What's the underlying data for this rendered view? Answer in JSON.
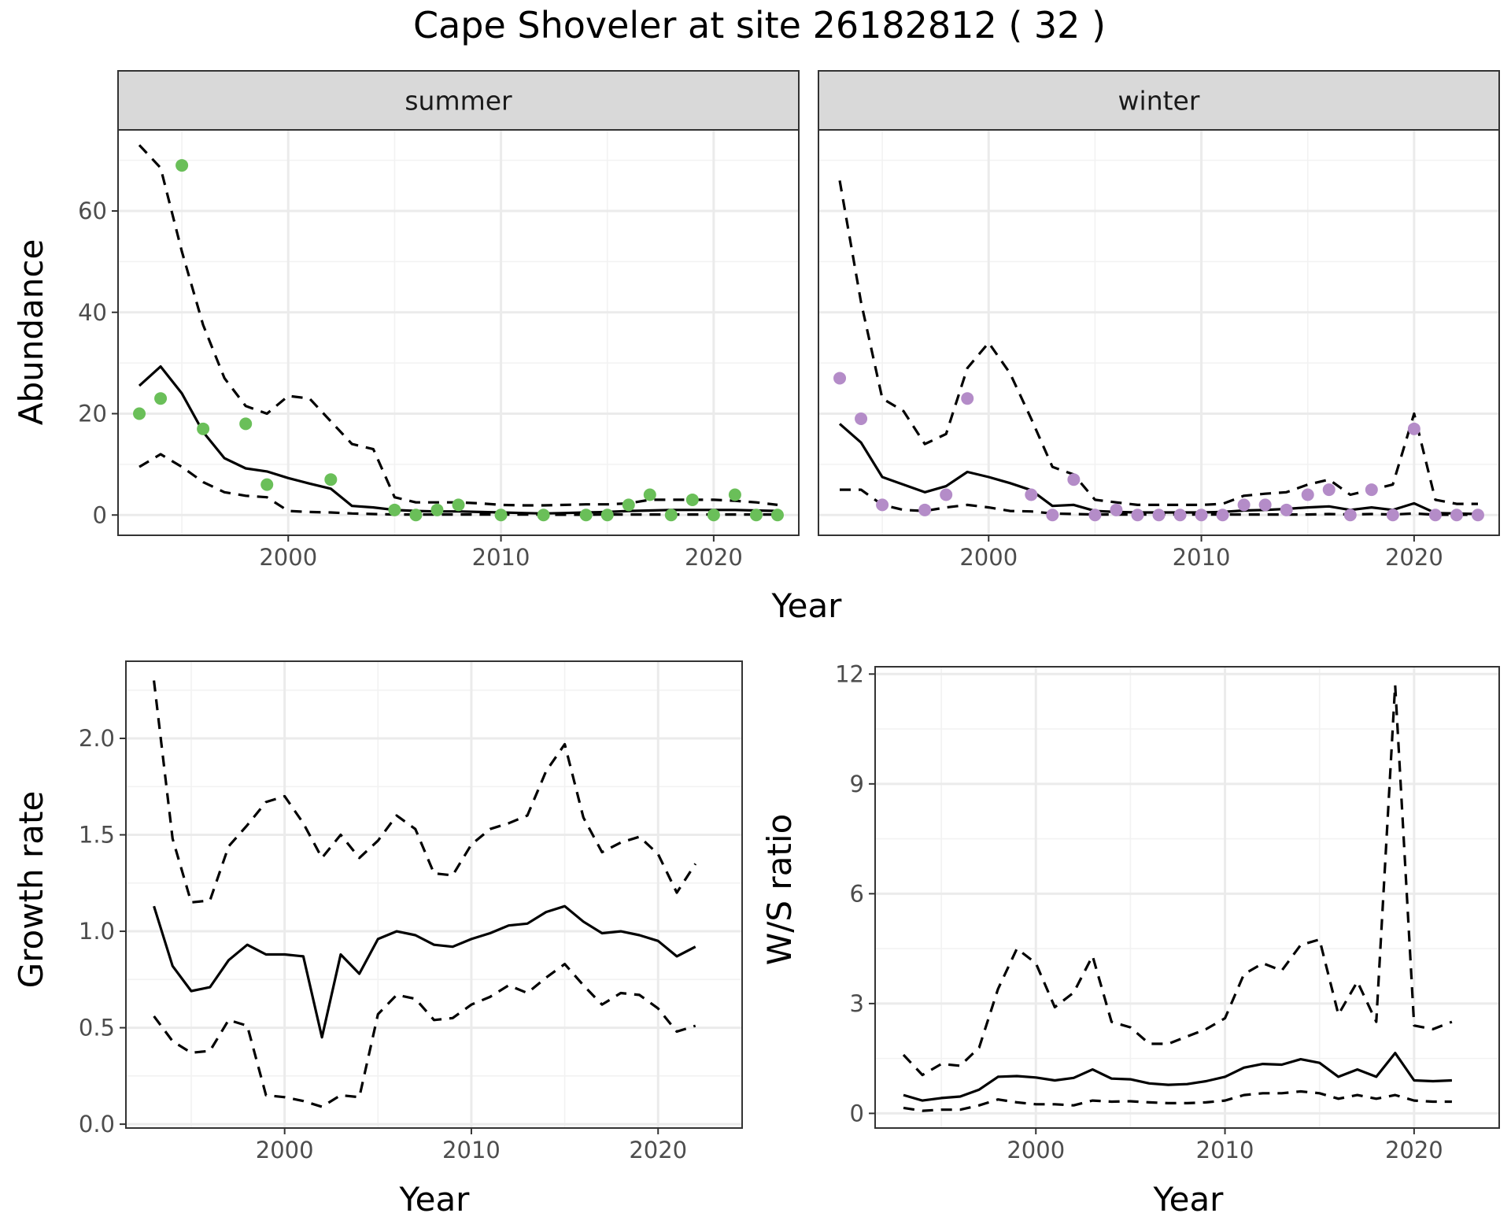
{
  "title": "Cape Shoveler at site 26182812 ( 32 )",
  "colors": {
    "summer_points": "#6abf59",
    "winter_points": "#b48cc8"
  },
  "chart_data": [
    {
      "type": "line",
      "panel": "summer",
      "xlabel": "Year",
      "ylabel": "Abundance",
      "xlim": [
        1992,
        2024
      ],
      "ylim": [
        -4,
        76
      ],
      "xticks": [
        2000,
        2010,
        2020
      ],
      "yticks": [
        0,
        20,
        40,
        60
      ],
      "grid": true,
      "series": [
        {
          "style": "solid",
          "x": [
            1993,
            1994,
            1995,
            1996,
            1997,
            1998,
            1999,
            2000,
            2001,
            2002,
            2003,
            2004,
            2005,
            2006,
            2007,
            2008,
            2009,
            2010,
            2011,
            2012,
            2013,
            2014,
            2015,
            2016,
            2017,
            2018,
            2019,
            2020,
            2021,
            2022,
            2023
          ],
          "values": [
            25.5,
            29.3,
            24,
            16.4,
            11.2,
            9.2,
            8.6,
            7.3,
            6.2,
            5.2,
            1.8,
            1.5,
            1,
            0.8,
            0.7,
            0.7,
            0.6,
            0.5,
            0.4,
            0.3,
            0.4,
            0.5,
            0.6,
            0.8,
            0.9,
            1,
            1,
            1,
            1,
            0.9,
            0.8
          ]
        },
        {
          "style": "dashed",
          "x": [
            1993,
            1994,
            1995,
            1996,
            1997,
            1998,
            1999,
            2000,
            2001,
            2002,
            2003,
            2004,
            2005,
            2006,
            2007,
            2008,
            2009,
            2010,
            2011,
            2012,
            2013,
            2014,
            2015,
            2016,
            2017,
            2018,
            2019,
            2020,
            2021,
            2022,
            2023
          ],
          "values": [
            73,
            68.5,
            52,
            37.5,
            27,
            21.5,
            20,
            23.5,
            23,
            18.5,
            14,
            13,
            3.5,
            2.5,
            2.5,
            2.5,
            2.3,
            2,
            1.9,
            1.9,
            2,
            2.1,
            2.1,
            2.3,
            3,
            3,
            3,
            3,
            2.8,
            2.5,
            2
          ]
        },
        {
          "style": "dashed",
          "x": [
            1993,
            1994,
            1995,
            1996,
            1997,
            1998,
            1999,
            2000,
            2001,
            2002,
            2003,
            2004,
            2005,
            2006,
            2007,
            2008,
            2009,
            2010,
            2011,
            2012,
            2013,
            2014,
            2015,
            2016,
            2017,
            2018,
            2019,
            2020,
            2021,
            2022,
            2023
          ],
          "values": [
            9.5,
            12,
            9.5,
            6.5,
            4.5,
            3.8,
            3.5,
            0.8,
            0.6,
            0.5,
            0.3,
            0.2,
            0.1,
            0.1,
            0.1,
            0.1,
            0.1,
            0.1,
            0.1,
            0.05,
            0.05,
            0.05,
            0.1,
            0.1,
            0.1,
            0.1,
            0.1,
            0.1,
            0.1,
            0.1,
            0.1
          ]
        },
        {
          "style": "points",
          "x": [
            1993,
            1994,
            1995,
            1996,
            1998,
            1999,
            2002,
            2005,
            2006,
            2007,
            2008,
            2010,
            2012,
            2014,
            2015,
            2016,
            2017,
            2018,
            2019,
            2020,
            2021,
            2022,
            2023
          ],
          "values": [
            20,
            23,
            69,
            17,
            18,
            6,
            7,
            1,
            0,
            1,
            2,
            0,
            0,
            0,
            0,
            2,
            4,
            0,
            3,
            0,
            4,
            0,
            0
          ]
        }
      ]
    },
    {
      "type": "line",
      "panel": "winter",
      "xlabel": "Year",
      "ylabel": "Abundance",
      "xlim": [
        1992,
        2024
      ],
      "ylim": [
        -4,
        76
      ],
      "xticks": [
        2000,
        2010,
        2020
      ],
      "yticks": [
        0,
        20,
        40,
        60
      ],
      "grid": true,
      "series": [
        {
          "style": "solid",
          "x": [
            1993,
            1994,
            1995,
            1996,
            1997,
            1998,
            1999,
            2000,
            2001,
            2002,
            2003,
            2004,
            2005,
            2006,
            2007,
            2008,
            2009,
            2010,
            2011,
            2012,
            2013,
            2014,
            2015,
            2016,
            2017,
            2018,
            2019,
            2020,
            2021,
            2022,
            2023
          ],
          "values": [
            18,
            14.3,
            7.5,
            6,
            4.5,
            5.7,
            8.5,
            7.5,
            6.3,
            4.9,
            1.8,
            2,
            0.8,
            0.6,
            0.5,
            0.5,
            0.5,
            0.5,
            0.6,
            0.9,
            1,
            1.2,
            1.5,
            1.7,
            1,
            1.5,
            1,
            2.3,
            0.4,
            0.3,
            0.2
          ]
        },
        {
          "style": "dashed",
          "x": [
            1993,
            1994,
            1995,
            1996,
            1997,
            1998,
            1999,
            2000,
            2001,
            2002,
            2003,
            2004,
            2005,
            2006,
            2007,
            2008,
            2009,
            2010,
            2011,
            2012,
            2013,
            2014,
            2015,
            2016,
            2017,
            2018,
            2019,
            2020,
            2021,
            2022,
            2023
          ],
          "values": [
            66,
            42,
            23,
            20.5,
            14,
            16,
            29,
            34,
            28,
            19,
            9.5,
            8,
            3,
            2.5,
            2,
            2,
            2,
            2,
            2.2,
            3.8,
            4.2,
            4.5,
            6,
            7,
            4,
            5,
            6,
            20,
            3,
            2.2,
            2.2
          ]
        },
        {
          "style": "dashed",
          "x": [
            1993,
            1994,
            1995,
            1996,
            1997,
            1998,
            1999,
            2000,
            2001,
            2002,
            2003,
            2004,
            2005,
            2006,
            2007,
            2008,
            2009,
            2010,
            2011,
            2012,
            2013,
            2014,
            2015,
            2016,
            2017,
            2018,
            2019,
            2020,
            2021,
            2022,
            2023
          ],
          "values": [
            5,
            5,
            2,
            1,
            0.8,
            1.5,
            2,
            1.5,
            0.8,
            0.7,
            0.3,
            0.2,
            0.1,
            0.1,
            0.1,
            0.1,
            0.1,
            0.1,
            0.1,
            0.1,
            0.1,
            0.1,
            0.1,
            0.2,
            0.1,
            0.2,
            0.1,
            0.3,
            0.05,
            0.05,
            0.05
          ]
        },
        {
          "style": "points",
          "x": [
            1993,
            1994,
            1995,
            1997,
            1998,
            1999,
            2002,
            2003,
            2004,
            2005,
            2006,
            2007,
            2008,
            2009,
            2010,
            2011,
            2012,
            2013,
            2014,
            2015,
            2016,
            2017,
            2018,
            2019,
            2020,
            2021,
            2022,
            2023
          ],
          "values": [
            27,
            19,
            2,
            1,
            4,
            23,
            4,
            0,
            7,
            0,
            1,
            0,
            0,
            0,
            0,
            0,
            2,
            2,
            1,
            4,
            5,
            0,
            5,
            0,
            17,
            0,
            0,
            0
          ]
        }
      ]
    },
    {
      "type": "line",
      "panel": "growth",
      "xlabel": "Year",
      "ylabel": "Growth rate",
      "xlim": [
        1991.5,
        2024.5
      ],
      "ylim": [
        -0.02,
        2.4
      ],
      "xticks": [
        2000,
        2010,
        2020
      ],
      "yticks": [
        0.0,
        0.5,
        1.0,
        1.5,
        2.0
      ],
      "ytick_labels": [
        "0.0",
        "0.5",
        "1.0",
        "1.5",
        "2.0"
      ],
      "grid": true,
      "series": [
        {
          "style": "solid",
          "x": [
            1993,
            1994,
            1995,
            1996,
            1997,
            1998,
            1999,
            2000,
            2001,
            2002,
            2003,
            2004,
            2005,
            2006,
            2007,
            2008,
            2009,
            2010,
            2011,
            2012,
            2013,
            2014,
            2015,
            2016,
            2017,
            2018,
            2019,
            2020,
            2021,
            2022
          ],
          "values": [
            1.13,
            0.82,
            0.69,
            0.71,
            0.85,
            0.93,
            0.88,
            0.88,
            0.87,
            0.45,
            0.88,
            0.78,
            0.96,
            1,
            0.98,
            0.93,
            0.92,
            0.96,
            0.99,
            1.03,
            1.04,
            1.1,
            1.13,
            1.05,
            0.99,
            1,
            0.98,
            0.95,
            0.87,
            0.92
          ]
        },
        {
          "style": "dashed",
          "x": [
            1993,
            1994,
            1995,
            1996,
            1997,
            1998,
            1999,
            2000,
            2001,
            2002,
            2003,
            2004,
            2005,
            2006,
            2007,
            2008,
            2009,
            2010,
            2011,
            2012,
            2013,
            2014,
            2015,
            2016,
            2017,
            2018,
            2019,
            2020,
            2021,
            2022
          ],
          "values": [
            2.3,
            1.48,
            1.15,
            1.16,
            1.44,
            1.55,
            1.67,
            1.7,
            1.56,
            1.38,
            1.5,
            1.38,
            1.47,
            1.6,
            1.53,
            1.3,
            1.29,
            1.45,
            1.53,
            1.56,
            1.6,
            1.83,
            1.97,
            1.59,
            1.41,
            1.46,
            1.49,
            1.4,
            1.2,
            1.35
          ]
        },
        {
          "style": "dashed",
          "x": [
            1993,
            1994,
            1995,
            1996,
            1997,
            1998,
            1999,
            2000,
            2001,
            2002,
            2003,
            2004,
            2005,
            2006,
            2007,
            2008,
            2009,
            2010,
            2011,
            2012,
            2013,
            2014,
            2015,
            2016,
            2017,
            2018,
            2019,
            2020,
            2021,
            2022
          ],
          "values": [
            0.56,
            0.43,
            0.37,
            0.38,
            0.54,
            0.51,
            0.15,
            0.14,
            0.12,
            0.09,
            0.15,
            0.14,
            0.57,
            0.67,
            0.65,
            0.54,
            0.55,
            0.62,
            0.66,
            0.72,
            0.68,
            0.76,
            0.83,
            0.72,
            0.62,
            0.68,
            0.67,
            0.6,
            0.48,
            0.51
          ]
        }
      ]
    },
    {
      "type": "line",
      "panel": "ws-ratio",
      "xlabel": "Year",
      "ylabel": "W/S ratio",
      "xlim": [
        1991.5,
        2024.5
      ],
      "ylim": [
        -0.4,
        12.2
      ],
      "xticks": [
        2000,
        2010,
        2020
      ],
      "yticks": [
        0,
        3,
        6,
        9,
        12
      ],
      "ytick_labels": [
        "0",
        "3",
        "6",
        "9",
        "12"
      ],
      "grid": true,
      "series": [
        {
          "style": "solid",
          "x": [
            1993,
            1994,
            1995,
            1996,
            1997,
            1998,
            1999,
            2000,
            2001,
            2002,
            2003,
            2004,
            2005,
            2006,
            2007,
            2008,
            2009,
            2010,
            2011,
            2012,
            2013,
            2014,
            2015,
            2016,
            2017,
            2018,
            2019,
            2020,
            2021,
            2022
          ],
          "values": [
            0.5,
            0.35,
            0.42,
            0.46,
            0.65,
            1,
            1.02,
            0.98,
            0.9,
            0.97,
            1.2,
            0.95,
            0.93,
            0.82,
            0.78,
            0.8,
            0.88,
            1,
            1.25,
            1.35,
            1.33,
            1.48,
            1.38,
            1,
            1.2,
            1,
            1.65,
            0.9,
            0.88,
            0.9
          ]
        },
        {
          "style": "dashed",
          "x": [
            1993,
            1994,
            1995,
            1996,
            1997,
            1998,
            1999,
            2000,
            2001,
            2002,
            2003,
            2004,
            2005,
            2006,
            2007,
            2008,
            2009,
            2010,
            2011,
            2012,
            2013,
            2014,
            2015,
            2016,
            2017,
            2018,
            2019,
            2020,
            2021,
            2022
          ],
          "values": [
            1.6,
            1.05,
            1.35,
            1.3,
            1.8,
            3.4,
            4.5,
            4.1,
            2.9,
            3.3,
            4.3,
            2.5,
            2.35,
            1.9,
            1.9,
            2.1,
            2.3,
            2.6,
            3.8,
            4.1,
            3.9,
            4.6,
            4.75,
            2.7,
            3.6,
            2.5,
            11.7,
            2.4,
            2.3,
            2.5
          ]
        },
        {
          "style": "dashed",
          "x": [
            1993,
            1994,
            1995,
            1996,
            1997,
            1998,
            1999,
            2000,
            2001,
            2002,
            2003,
            2004,
            2005,
            2006,
            2007,
            2008,
            2009,
            2010,
            2011,
            2012,
            2013,
            2014,
            2015,
            2016,
            2017,
            2018,
            2019,
            2020,
            2021,
            2022
          ],
          "values": [
            0.15,
            0.07,
            0.1,
            0.1,
            0.22,
            0.38,
            0.3,
            0.25,
            0.25,
            0.22,
            0.35,
            0.32,
            0.33,
            0.3,
            0.28,
            0.28,
            0.3,
            0.35,
            0.5,
            0.55,
            0.55,
            0.6,
            0.55,
            0.4,
            0.5,
            0.4,
            0.5,
            0.35,
            0.32,
            0.32
          ]
        }
      ]
    }
  ]
}
